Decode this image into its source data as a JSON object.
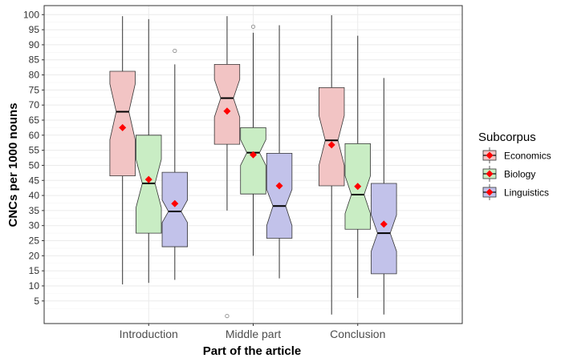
{
  "chart_data": {
    "type": "boxplot",
    "notched": true,
    "xlabel": "Part of the article",
    "ylabel": "CNCs per 1000 nouns",
    "categories": [
      "Introduction",
      "Middle part",
      "Conclusion"
    ],
    "y_ticks": [
      5,
      10,
      15,
      20,
      25,
      30,
      35,
      40,
      45,
      50,
      55,
      60,
      65,
      70,
      75,
      80,
      85,
      90,
      95,
      100
    ],
    "ylim": [
      -2.5,
      103
    ],
    "grid": true,
    "legend": {
      "title": "Subcorpus",
      "position": "right",
      "entries": [
        "Economics",
        "Biology",
        "Linguistics"
      ]
    },
    "series": [
      {
        "name": "Economics",
        "fill": "#f2c4c4",
        "stroke": "#333333",
        "boxes": [
          {
            "category": "Introduction",
            "min": 10.5,
            "q1": 46.5,
            "median": 67.8,
            "q3": 81.2,
            "max": 99.5,
            "mean": 62.5,
            "notch": [
              58.5,
              77.0
            ],
            "outliers": []
          },
          {
            "category": "Middle part",
            "min": 35.0,
            "q1": 57.0,
            "median": 72.3,
            "q3": 83.5,
            "max": 99.5,
            "mean": 68.0,
            "notch": [
              66.0,
              78.5
            ],
            "outliers": [
              0.0
            ]
          },
          {
            "category": "Conclusion",
            "min": 0.5,
            "q1": 43.2,
            "median": 58.3,
            "q3": 75.8,
            "max": 99.8,
            "mean": 56.8,
            "notch": [
              50.0,
              66.5
            ],
            "outliers": []
          }
        ]
      },
      {
        "name": "Biology",
        "fill": "#c9edc4",
        "stroke": "#333333",
        "boxes": [
          {
            "category": "Introduction",
            "min": 11.0,
            "q1": 27.5,
            "median": 44.0,
            "q3": 60.0,
            "max": 98.5,
            "mean": 45.3,
            "notch": [
              36.0,
              52.0
            ],
            "outliers": []
          },
          {
            "category": "Middle part",
            "min": 20.0,
            "q1": 40.5,
            "median": 54.2,
            "q3": 62.5,
            "max": 94.0,
            "mean": 53.5,
            "notch": [
              50.0,
              58.5
            ],
            "outliers": [
              96.0
            ]
          },
          {
            "category": "Conclusion",
            "min": 6.0,
            "q1": 28.8,
            "median": 40.3,
            "q3": 57.2,
            "max": 93.0,
            "mean": 43.0,
            "notch": [
              34.0,
              46.5
            ],
            "outliers": []
          }
        ]
      },
      {
        "name": "Linguistics",
        "fill": "#c2c2ea",
        "stroke": "#333333",
        "boxes": [
          {
            "category": "Introduction",
            "min": 12.0,
            "q1": 23.0,
            "median": 34.7,
            "q3": 47.7,
            "max": 83.5,
            "mean": 37.3,
            "notch": [
              31.0,
              38.5
            ],
            "outliers": [
              88.0
            ]
          },
          {
            "category": "Middle part",
            "min": 12.5,
            "q1": 25.8,
            "median": 36.5,
            "q3": 54.0,
            "max": 96.5,
            "mean": 43.2,
            "notch": [
              30.0,
              42.0
            ],
            "outliers": []
          },
          {
            "category": "Conclusion",
            "min": 0.5,
            "q1": 14.0,
            "median": 27.5,
            "q3": 44.0,
            "max": 79.0,
            "mean": 30.5,
            "notch": [
              21.5,
              33.5
            ],
            "outliers": []
          }
        ]
      }
    ],
    "mean_marker": {
      "shape": "diamond",
      "color": "#ff0000"
    }
  }
}
